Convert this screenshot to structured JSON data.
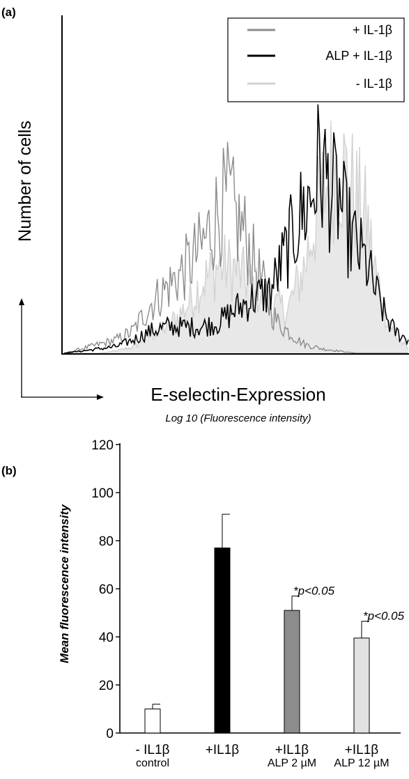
{
  "panel_a": {
    "label": "(a)",
    "ylabel": "Number of cells",
    "xlabel": "E-selectin-Expression",
    "xsublabel": "Log 10  (Fluorescence intensity)",
    "legend": [
      {
        "name": "+ IL-1β",
        "color": "#8c8c8c"
      },
      {
        "name": "ALP + IL-1β",
        "color": "#000000"
      },
      {
        "name": "- IL-1β",
        "color": "#d2d2d2"
      }
    ]
  },
  "panel_b": {
    "label": "(b)"
  },
  "chart_data": [
    {
      "type": "area",
      "title": "",
      "xlabel": "E-selectin-Expression",
      "ylabel": "Number of cells",
      "x_scale": "log10",
      "x_range": [
        0,
        100
      ],
      "y_range": [
        0,
        100
      ],
      "series": [
        {
          "name": "- IL-1β",
          "color": "#d2d2d2",
          "x": [
            0,
            5,
            10,
            15,
            20,
            25,
            30,
            35,
            40,
            45,
            50,
            55,
            60,
            65,
            70,
            72,
            75,
            78,
            80,
            82,
            85,
            88,
            90,
            93,
            96,
            100
          ],
          "values": [
            0,
            0,
            0,
            1,
            3,
            8,
            12,
            20,
            32,
            40,
            38,
            30,
            22,
            20,
            40,
            55,
            72,
            82,
            85,
            80,
            70,
            60,
            40,
            20,
            8,
            2
          ]
        },
        {
          "name": "+ IL-1β",
          "color": "#8c8c8c",
          "x": [
            0,
            5,
            10,
            15,
            20,
            25,
            30,
            35,
            40,
            42,
            45,
            48,
            50,
            52,
            55,
            58,
            60,
            62,
            65,
            68,
            70,
            75,
            80,
            85,
            90,
            95,
            100
          ],
          "values": [
            0,
            2,
            4,
            6,
            10,
            22,
            30,
            38,
            48,
            55,
            65,
            70,
            60,
            56,
            42,
            30,
            20,
            14,
            10,
            6,
            4,
            2,
            1,
            0,
            0,
            0,
            0
          ]
        },
        {
          "name": "ALP + IL-1β",
          "color": "#000000",
          "x": [
            0,
            5,
            10,
            15,
            20,
            25,
            30,
            35,
            40,
            45,
            50,
            55,
            60,
            65,
            68,
            70,
            72,
            74,
            76,
            78,
            80,
            82,
            85,
            88,
            90,
            93,
            96,
            100
          ],
          "values": [
            0,
            1,
            2,
            3,
            6,
            10,
            12,
            12,
            12,
            14,
            20,
            25,
            28,
            48,
            60,
            66,
            72,
            85,
            80,
            72,
            70,
            58,
            48,
            40,
            30,
            18,
            10,
            6
          ]
        }
      ],
      "legend_position": "top-right"
    },
    {
      "type": "bar",
      "title": "",
      "ylabel": "Mean fluorescence intensity",
      "ylim": [
        0,
        120
      ],
      "yticks": [
        0,
        20,
        40,
        60,
        80,
        100,
        120
      ],
      "categories": [
        {
          "line1": "- IL1β",
          "line2": "control"
        },
        {
          "line1": "+IL1β",
          "line2": ""
        },
        {
          "line1": "+IL1β",
          "line2": "ALP 2 µM"
        },
        {
          "line1": "+IL1β",
          "line2": "ALP 12 µM"
        }
      ],
      "values": [
        10,
        77,
        51,
        39.5
      ],
      "errors": [
        2,
        14,
        6,
        7
      ],
      "colors": [
        "#ffffff",
        "#000000",
        "#8c8c8c",
        "#e2e2e2"
      ],
      "annotations": [
        "",
        "",
        "*p<0.05",
        "*p<0.05"
      ]
    }
  ]
}
